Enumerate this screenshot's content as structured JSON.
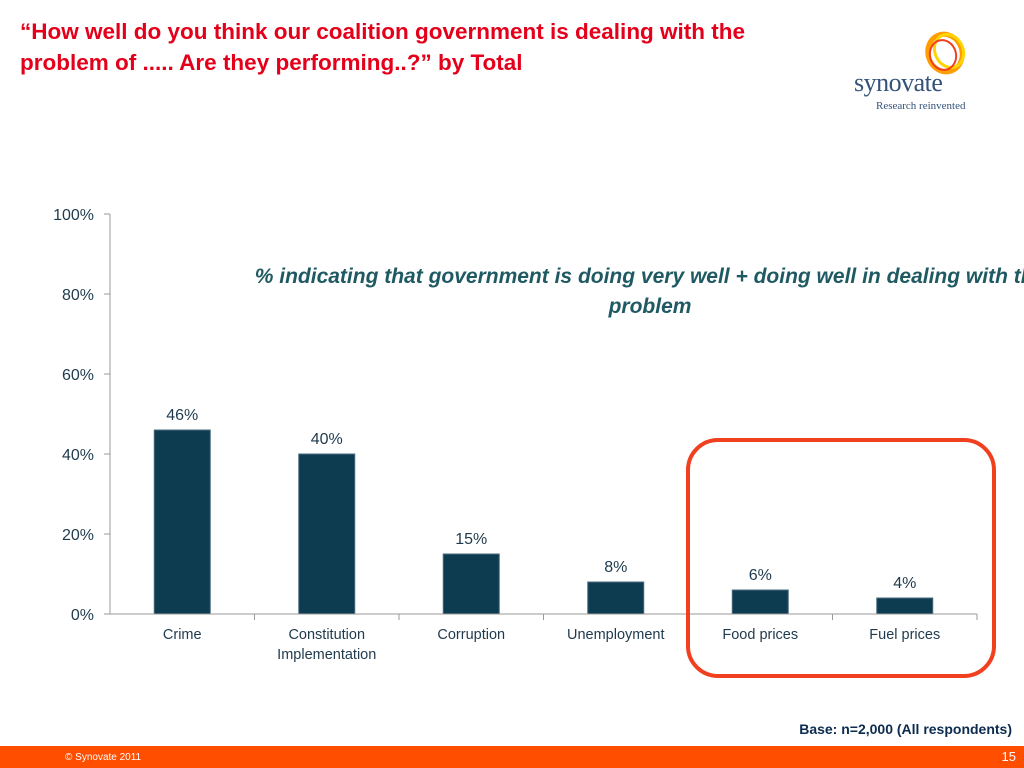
{
  "title": "“How well do you think our coalition government is dealing with the problem of ..... Are they performing..?” by Total",
  "logo": {
    "name": "synovate",
    "tagline": "Research reinvented"
  },
  "subtitle": "%  indicating that government is doing very well + doing well in dealing with the problem",
  "base_note": "Base: n=2,000 (All respondents)",
  "footer": {
    "copyright": "© Synovate 2011",
    "page_number": "15"
  },
  "colors": {
    "bar": "#0d3b4f",
    "title": "#e4001b",
    "highlight": "#f0401f",
    "footer": "#ff4e00"
  },
  "chart_data": {
    "type": "bar",
    "categories": [
      "Crime",
      "Constitution Implementation",
      "Corruption",
      "Unemployment",
      "Food prices",
      "Fuel prices"
    ],
    "category_lines": [
      [
        "Crime"
      ],
      [
        "Constitution",
        "Implementation"
      ],
      [
        "Corruption"
      ],
      [
        "Unemployment"
      ],
      [
        "Food prices"
      ],
      [
        "Fuel prices"
      ]
    ],
    "values": [
      46,
      40,
      15,
      8,
      6,
      4
    ],
    "data_labels": [
      "46%",
      "40%",
      "15%",
      "8%",
      "6%",
      "4%"
    ],
    "ylim": [
      0,
      100
    ],
    "yticks": [
      "0%",
      "20%",
      "40%",
      "60%",
      "80%",
      "100%"
    ],
    "ytick_values": [
      0,
      20,
      40,
      60,
      80,
      100
    ],
    "highlighted_categories": [
      "Food prices",
      "Fuel prices"
    ],
    "grid": false,
    "legend": "none"
  }
}
